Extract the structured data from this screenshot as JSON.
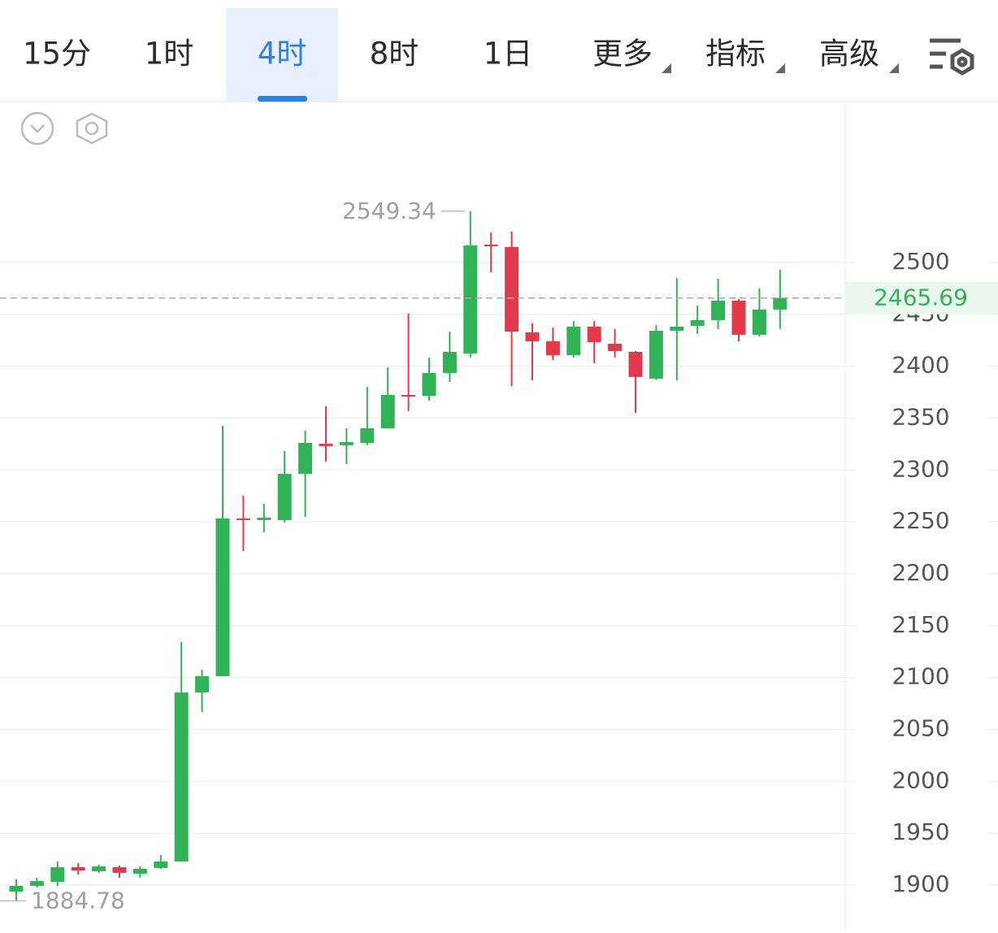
{
  "toolbar": {
    "tabs": [
      "15分",
      "1时",
      "4时",
      "8时",
      "1日",
      "更多",
      "指标",
      "高级"
    ]
  },
  "chart_data": {
    "type": "candlestick",
    "open": [
      1893.7,
      1899.2,
      1903.1,
      1917.2,
      1913.3,
      1917.2,
      1911.0,
      1916.5,
      1922.7,
      2085.6,
      2101.3,
      2253.3,
      2251.7,
      2251.7,
      2296.3,
      2325.3,
      2323.8,
      2326.1,
      2340.2,
      2372.3,
      2371.5,
      2393.5,
      2412.3,
      2517.2,
      2514.9,
      2432.6,
      2424.0,
      2410.7,
      2438.1,
      2421.7,
      2413.8,
      2388.0,
      2434.2,
      2438.9,
      2444.4,
      2463.2,
      2430.3,
      2454.6
    ],
    "high": [
      1905.5,
      1907.1,
      1922.7,
      1921.2,
      1919.6,
      1918.8,
      1918.0,
      1929.0,
      2134.2,
      2107.6,
      2342.6,
      2275.2,
      2267.4,
      2318.3,
      2337.9,
      2361.4,
      2340.2,
      2380.2,
      2399.0,
      2450.7,
      2408.4,
      2433.4,
      2549.34,
      2529.0,
      2529.8,
      2441.3,
      2437.3,
      2443.6,
      2443.6,
      2435.8,
      2414.6,
      2439.7,
      2485.1,
      2458.5,
      2484.3,
      2464.8,
      2474.9,
      2493.0
    ],
    "low": [
      1884.78,
      1897.7,
      1899.2,
      1910.2,
      1911.8,
      1907.1,
      1907.1,
      1915.7,
      1922.7,
      2066.8,
      2101.3,
      2221.9,
      2240.0,
      2249.4,
      2254.8,
      2308.1,
      2305.8,
      2323.8,
      2340.2,
      2356.7,
      2366.8,
      2384.9,
      2408.4,
      2490.6,
      2380.9,
      2386.4,
      2406.0,
      2408.4,
      2402.9,
      2408.4,
      2355.1,
      2387.2,
      2386.4,
      2431.1,
      2435.8,
      2424.0,
      2428.7,
      2435.8
    ],
    "close": [
      1899.2,
      1903.9,
      1917.2,
      1914.1,
      1918.0,
      1911.8,
      1915.7,
      1922.7,
      2085.6,
      2101.3,
      2253.3,
      2251.7,
      2254.1,
      2296.3,
      2326.1,
      2323.0,
      2326.9,
      2340.2,
      2372.3,
      2370.8,
      2393.5,
      2413.8,
      2516.4,
      2515.7,
      2433.4,
      2424.0,
      2410.7,
      2438.1,
      2423.2,
      2414.6,
      2389.6,
      2434.2,
      2438.1,
      2444.4,
      2463.2,
      2430.3,
      2454.6,
      2465.69
    ],
    "up_color": "#30b356",
    "down_color": "#e23a4b",
    "ylim": [
      1864,
      2655
    ],
    "yticks": [
      1900,
      1950,
      2000,
      2050,
      2100,
      2150,
      2200,
      2250,
      2300,
      2350,
      2400,
      2450,
      2500
    ],
    "grid": true
  }
}
